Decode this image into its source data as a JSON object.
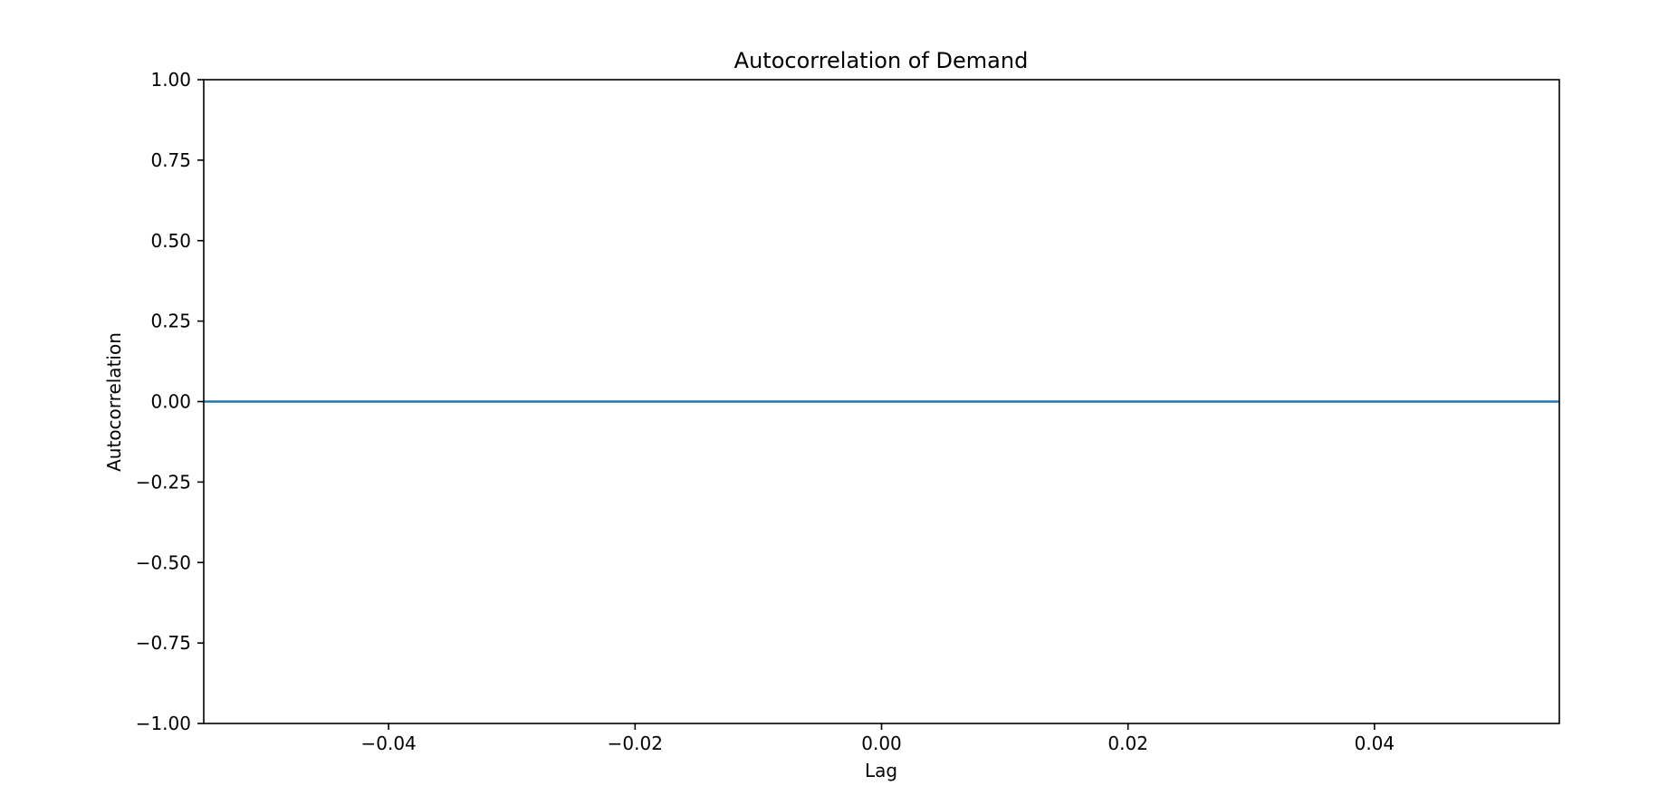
{
  "chart_data": {
    "type": "line",
    "title": "Autocorrelation of Demand",
    "xlabel": "Lag",
    "ylabel": "Autocorrelation",
    "xlim": [
      -0.055,
      0.055
    ],
    "ylim": [
      -1.0,
      1.0
    ],
    "x_ticks": [
      -0.04,
      -0.02,
      0.0,
      0.02,
      0.04
    ],
    "x_tick_labels": [
      "−0.04",
      "−0.02",
      "0.00",
      "0.02",
      "0.04"
    ],
    "y_ticks": [
      1.0,
      0.75,
      0.5,
      0.25,
      0.0,
      -0.25,
      -0.5,
      -0.75,
      -1.0
    ],
    "y_tick_labels": [
      "1.00",
      "0.75",
      "0.50",
      "0.25",
      "0.00",
      "−0.25",
      "−0.50",
      "−0.75",
      "−1.00"
    ],
    "grid": false,
    "series": [
      {
        "color": "#1f77b4",
        "style": "horizontal-line",
        "y": 0.0
      }
    ]
  }
}
